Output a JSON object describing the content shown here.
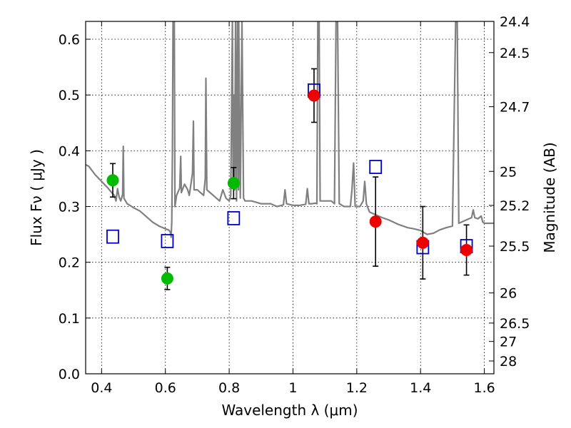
{
  "chart_data": {
    "type": "scatter",
    "xlabel": "Wavelength  λ (μm)",
    "ylabel": "Flux  Fν  ( μJy )",
    "y2label": "Magnitude (AB)",
    "xlim": [
      0.35,
      1.63
    ],
    "ylim": [
      0.0,
      0.632
    ],
    "grid": true,
    "x_ticks": [
      0.4,
      0.6,
      0.8,
      1.0,
      1.2,
      1.4,
      1.6
    ],
    "x_tick_labels": [
      "0.4",
      "0.6",
      "0.8",
      "1",
      "1.2",
      "1.4",
      "1.6"
    ],
    "y_ticks": [
      0.0,
      0.1,
      0.2,
      0.3,
      0.4,
      0.5,
      0.6
    ],
    "y_tick_labels": [
      "0.0",
      "0.1",
      "0.2",
      "0.3",
      "0.4",
      "0.5",
      "0.6"
    ],
    "y2_ticks": [
      {
        "label": "24.4",
        "flux": 0.632
      },
      {
        "label": "24.5",
        "flux": 0.576
      },
      {
        "label": "24.7",
        "flux": 0.479
      },
      {
        "label": "25",
        "flux": 0.363
      },
      {
        "label": "25.2",
        "flux": 0.302
      },
      {
        "label": "25.5",
        "flux": 0.229
      },
      {
        "label": "26",
        "flux": 0.145
      },
      {
        "label": "26.5",
        "flux": 0.091
      },
      {
        "label": "27",
        "flux": 0.058
      },
      {
        "label": "28",
        "flux": 0.023
      }
    ],
    "colors": {
      "green_points": "#00bb00",
      "red_points": "#ee0000",
      "model_squares": "#0000cc",
      "sed": "#808080",
      "errorbar": "#000000",
      "grid": "#000000"
    },
    "green_points": [
      {
        "x": 0.435,
        "y": 0.347,
        "err": 0.03
      },
      {
        "x": 0.606,
        "y": 0.171,
        "err": 0.02
      },
      {
        "x": 0.814,
        "y": 0.342,
        "err": 0.028
      }
    ],
    "red_points": [
      {
        "x": 1.066,
        "y": 0.499,
        "err": 0.048
      },
      {
        "x": 1.259,
        "y": 0.273,
        "err": 0.08
      },
      {
        "x": 1.407,
        "y": 0.235,
        "err": 0.065
      },
      {
        "x": 1.544,
        "y": 0.222,
        "err": 0.045
      }
    ],
    "model_squares": [
      {
        "x": 0.435,
        "y": 0.246
      },
      {
        "x": 0.606,
        "y": 0.238
      },
      {
        "x": 0.814,
        "y": 0.279
      },
      {
        "x": 1.066,
        "y": 0.508
      },
      {
        "x": 1.259,
        "y": 0.371
      },
      {
        "x": 1.407,
        "y": 0.227
      },
      {
        "x": 1.544,
        "y": 0.229
      }
    ],
    "sed_curve": [
      [
        0.35,
        0.375
      ],
      [
        0.36,
        0.372
      ],
      [
        0.38,
        0.357
      ],
      [
        0.4,
        0.345
      ],
      [
        0.42,
        0.333
      ],
      [
        0.43,
        0.326
      ],
      [
        0.44,
        0.32
      ],
      [
        0.445,
        0.31
      ],
      [
        0.45,
        0.332
      ],
      [
        0.455,
        0.317
      ],
      [
        0.46,
        0.31
      ],
      [
        0.466,
        0.322
      ],
      [
        0.468,
        0.408
      ],
      [
        0.47,
        0.315
      ],
      [
        0.48,
        0.305
      ],
      [
        0.5,
        0.298
      ],
      [
        0.52,
        0.292
      ],
      [
        0.54,
        0.282
      ],
      [
        0.56,
        0.272
      ],
      [
        0.58,
        0.265
      ],
      [
        0.6,
        0.26
      ],
      [
        0.61,
        0.258
      ],
      [
        0.615,
        0.255
      ],
      [
        0.618,
        0.245
      ],
      [
        0.62,
        0.275
      ],
      [
        0.622,
        0.4
      ],
      [
        0.624,
        0.632
      ],
      [
        0.628,
        0.632
      ],
      [
        0.63,
        0.3
      ],
      [
        0.635,
        0.32
      ],
      [
        0.645,
        0.333
      ],
      [
        0.648,
        0.39
      ],
      [
        0.65,
        0.325
      ],
      [
        0.66,
        0.34
      ],
      [
        0.67,
        0.33
      ],
      [
        0.675,
        0.32
      ],
      [
        0.68,
        0.34
      ],
      [
        0.685,
        0.36
      ],
      [
        0.688,
        0.453
      ],
      [
        0.69,
        0.33
      ],
      [
        0.7,
        0.33
      ],
      [
        0.71,
        0.325
      ],
      [
        0.72,
        0.32
      ],
      [
        0.725,
        0.35
      ],
      [
        0.727,
        0.53
      ],
      [
        0.73,
        0.33
      ],
      [
        0.74,
        0.325
      ],
      [
        0.75,
        0.32
      ],
      [
        0.76,
        0.315
      ],
      [
        0.77,
        0.31
      ],
      [
        0.78,
        0.33
      ],
      [
        0.79,
        0.315
      ],
      [
        0.8,
        0.31
      ],
      [
        0.805,
        0.32
      ],
      [
        0.81,
        0.632
      ],
      [
        0.812,
        0.35
      ],
      [
        0.815,
        0.5
      ],
      [
        0.817,
        0.33
      ],
      [
        0.82,
        0.632
      ],
      [
        0.823,
        0.31
      ],
      [
        0.826,
        0.632
      ],
      [
        0.829,
        0.33
      ],
      [
        0.83,
        0.632
      ],
      [
        0.835,
        0.315
      ],
      [
        0.84,
        0.632
      ],
      [
        0.845,
        0.315
      ],
      [
        0.85,
        0.31
      ],
      [
        0.87,
        0.31
      ],
      [
        0.9,
        0.305
      ],
      [
        0.93,
        0.305
      ],
      [
        0.95,
        0.3
      ],
      [
        0.97,
        0.303
      ],
      [
        0.975,
        0.33
      ],
      [
        0.98,
        0.305
      ],
      [
        1.0,
        0.302
      ],
      [
        1.02,
        0.302
      ],
      [
        1.04,
        0.304
      ],
      [
        1.045,
        0.332
      ],
      [
        1.05,
        0.305
      ],
      [
        1.06,
        0.305
      ],
      [
        1.07,
        0.306
      ],
      [
        1.075,
        0.305
      ],
      [
        1.078,
        0.632
      ],
      [
        1.082,
        0.632
      ],
      [
        1.085,
        0.31
      ],
      [
        1.1,
        0.31
      ],
      [
        1.12,
        0.31
      ],
      [
        1.13,
        0.305
      ],
      [
        1.135,
        0.632
      ],
      [
        1.14,
        0.632
      ],
      [
        1.145,
        0.305
      ],
      [
        1.16,
        0.3
      ],
      [
        1.18,
        0.3
      ],
      [
        1.185,
        0.33
      ],
      [
        1.19,
        0.378
      ],
      [
        1.195,
        0.3
      ],
      [
        1.21,
        0.3
      ],
      [
        1.22,
        0.31
      ],
      [
        1.225,
        0.345
      ],
      [
        1.23,
        0.305
      ],
      [
        1.24,
        0.29
      ],
      [
        1.26,
        0.285
      ],
      [
        1.28,
        0.28
      ],
      [
        1.3,
        0.276
      ],
      [
        1.33,
        0.268
      ],
      [
        1.36,
        0.262
      ],
      [
        1.38,
        0.26
      ],
      [
        1.4,
        0.257
      ],
      [
        1.42,
        0.25
      ],
      [
        1.44,
        0.252
      ],
      [
        1.46,
        0.258
      ],
      [
        1.48,
        0.262
      ],
      [
        1.5,
        0.265
      ],
      [
        1.51,
        0.632
      ],
      [
        1.515,
        0.632
      ],
      [
        1.52,
        0.27
      ],
      [
        1.54,
        0.275
      ],
      [
        1.56,
        0.28
      ],
      [
        1.565,
        0.294
      ],
      [
        1.57,
        0.28
      ],
      [
        1.58,
        0.278
      ],
      [
        1.59,
        0.283
      ],
      [
        1.595,
        0.272
      ],
      [
        1.6,
        0.27
      ],
      [
        1.63,
        0.27
      ]
    ]
  }
}
